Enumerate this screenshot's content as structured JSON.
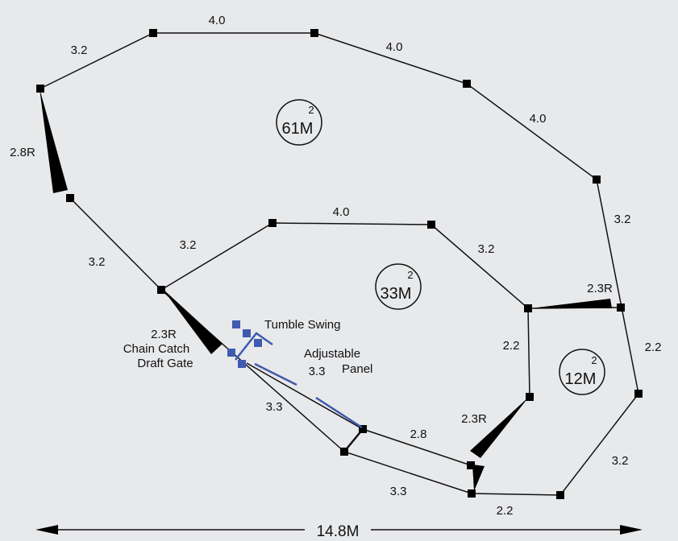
{
  "areas": {
    "top": {
      "value": "61M",
      "sup": "2"
    },
    "middle": {
      "value": "33M",
      "sup": "2"
    },
    "right": {
      "value": "12M",
      "sup": "2"
    }
  },
  "dimensions": {
    "outer_top_left": "3.2",
    "outer_top": "4.0",
    "outer_top_right": "4.0",
    "outer_right_upper": "4.0",
    "outer_left_gate": "2.8R",
    "outer_left_lower": "3.2",
    "inner_left": "3.2",
    "inner_top": "4.0",
    "inner_right": "3.2",
    "right_upper": "3.2",
    "right_gate": "2.3R",
    "right_outer": "2.2",
    "middle_vertical": "2.2",
    "lower_gate": "2.3R",
    "right_lower": "3.2",
    "bottom_right": "2.2",
    "race_bottom": "3.3",
    "race_left": "3.3",
    "race_inner": "3.3",
    "race_end": "2.8",
    "overall_width": "14.8M"
  },
  "labels": {
    "gate_size": "2.3R",
    "chain_catch": "Chain Catch",
    "draft_gate": "Draft Gate",
    "tumble_swing": "Tumble Swing",
    "adjustable": "Adjustable",
    "panel": "Panel"
  },
  "colors": {
    "background": "#e8e9eb",
    "line": "#111111",
    "post": "#000000",
    "blue": "#3e5bb0"
  }
}
